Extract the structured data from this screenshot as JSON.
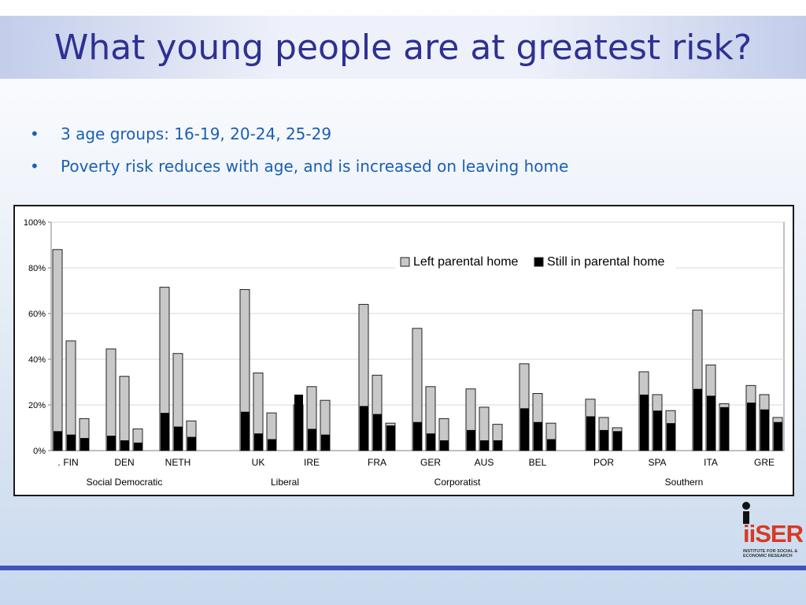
{
  "slide": {
    "title": "What young people are at greatest risk?",
    "bullets": [
      "3 age groups: 16-19, 20-24, 25-29",
      "Poverty risk reduces with age, and is increased on leaving home"
    ]
  },
  "logo": {
    "word": "iiSER",
    "subtitle": "INSTITUTE FOR SOCIAL & ECONOMIC RESEARCH"
  },
  "colors": {
    "title": "#2e3192",
    "bullet_text": "#1a5fb4",
    "left_home_bar": "#c8c8c8",
    "still_home_bar": "#000000",
    "footer_bar": "#3e55b8",
    "logo": "#d63a22"
  },
  "chart_data": {
    "type": "bar",
    "stacking": "overlapped",
    "ylim": [
      0,
      100
    ],
    "yticks": [
      "0%",
      "20%",
      "40%",
      "60%",
      "80%",
      "100%"
    ],
    "grid": true,
    "legend_position": "top-right",
    "series": [
      {
        "name": "Left parental home",
        "color": "#c8c8c8"
      },
      {
        "name": "Still in parental home",
        "color": "#000000"
      }
    ],
    "countries": [
      {
        "label": "FIN",
        "left": [
          88,
          48,
          14
        ],
        "still": [
          8.5,
          7,
          5.5
        ]
      },
      {
        "label": "DEN",
        "left": [
          44.5,
          32.5,
          9.5
        ],
        "still": [
          6.5,
          4.5,
          3.5
        ]
      },
      {
        "label": "NETH",
        "left": [
          71.5,
          42.5,
          13
        ],
        "still": [
          16.5,
          10.5,
          6
        ]
      },
      {
        "label": "UK",
        "left": [
          70.5,
          34,
          16.5
        ],
        "still": [
          17,
          7.5,
          5
        ]
      },
      {
        "label": "IRE",
        "left": [
          20,
          28,
          22
        ],
        "still": [
          24.5,
          9.5,
          7
        ]
      },
      {
        "label": "FRA",
        "left": [
          64,
          33,
          12
        ],
        "still": [
          19.5,
          16,
          11
        ]
      },
      {
        "label": "GER",
        "left": [
          53.5,
          28,
          14
        ],
        "still": [
          12.5,
          7.5,
          4.5
        ]
      },
      {
        "label": "AUS",
        "left": [
          27,
          19,
          11.5
        ],
        "still": [
          9,
          4.5,
          4.5
        ]
      },
      {
        "label": "BEL",
        "left": [
          38,
          25,
          12
        ],
        "still": [
          18.5,
          12.5,
          5
        ]
      },
      {
        "label": "POR",
        "left": [
          22.5,
          14.5,
          10
        ],
        "still": [
          15,
          9,
          8.5
        ]
      },
      {
        "label": "SPA",
        "left": [
          34.5,
          24.5,
          17.5
        ],
        "still": [
          24.5,
          17.5,
          12
        ]
      },
      {
        "label": "ITA",
        "left": [
          61.5,
          37.5,
          20.5
        ],
        "still": [
          27,
          24,
          19
        ]
      },
      {
        "label": "GRE",
        "left": [
          28.5,
          24.5,
          14.5
        ],
        "still": [
          21,
          18,
          12.5
        ]
      }
    ],
    "x_prefix_label": ".",
    "regimes": [
      {
        "label": "Social Democratic",
        "countries": [
          "FIN",
          "DEN",
          "NETH"
        ]
      },
      {
        "label": "Liberal",
        "countries": [
          "UK",
          "IRE"
        ]
      },
      {
        "label": "Corporatist",
        "countries": [
          "FRA",
          "GER",
          "AUS",
          "BEL"
        ]
      },
      {
        "label": "Southern",
        "countries": [
          "POR",
          "SPA",
          "ITA",
          "GRE"
        ]
      }
    ]
  }
}
